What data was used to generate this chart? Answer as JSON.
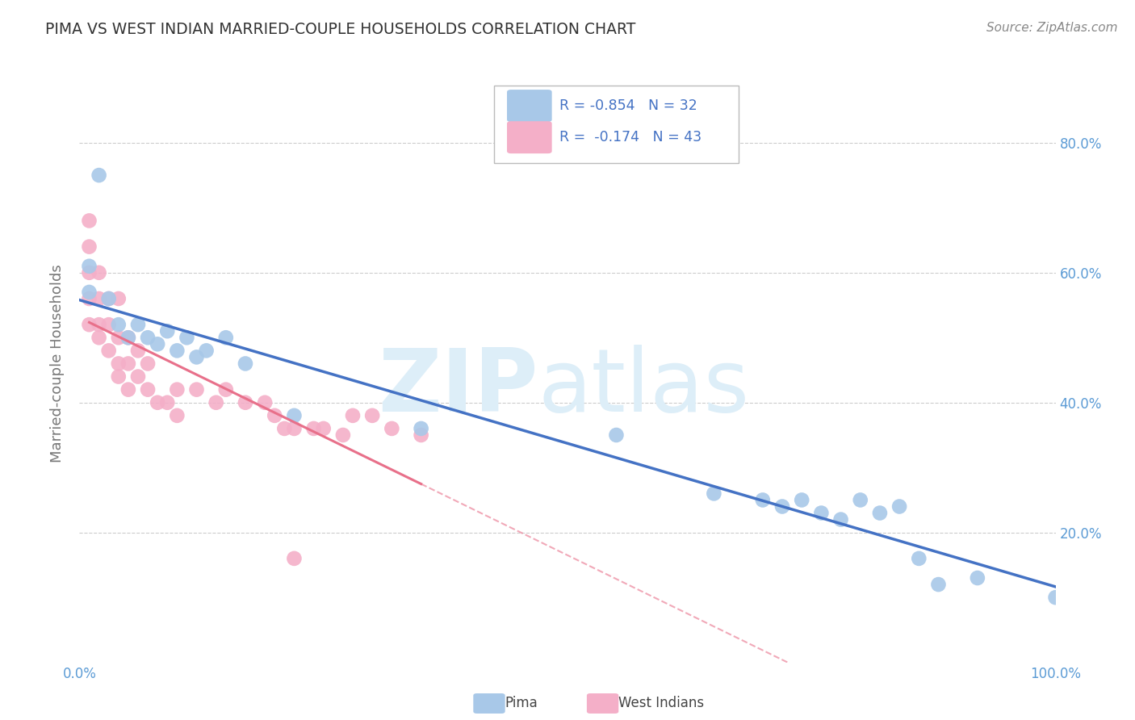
{
  "title": "PIMA VS WEST INDIAN MARRIED-COUPLE HOUSEHOLDS CORRELATION CHART",
  "source": "Source: ZipAtlas.com",
  "ylabel": "Married-couple Households",
  "ytick_labels": [
    "80.0%",
    "60.0%",
    "40.0%",
    "20.0%"
  ],
  "ytick_values": [
    0.8,
    0.6,
    0.4,
    0.2
  ],
  "legend_blue_r": "-0.854",
  "legend_blue_n": "32",
  "legend_pink_r": "-0.174",
  "legend_pink_n": "43",
  "pima_x": [
    0.01,
    0.01,
    0.02,
    0.03,
    0.04,
    0.05,
    0.06,
    0.07,
    0.08,
    0.09,
    0.1,
    0.11,
    0.12,
    0.13,
    0.15,
    0.17,
    0.22,
    0.35,
    0.55,
    0.65,
    0.7,
    0.72,
    0.74,
    0.76,
    0.78,
    0.8,
    0.82,
    0.84,
    0.86,
    0.88,
    0.92,
    1.0
  ],
  "pima_y": [
    0.61,
    0.57,
    0.75,
    0.56,
    0.52,
    0.5,
    0.52,
    0.5,
    0.49,
    0.51,
    0.48,
    0.5,
    0.47,
    0.48,
    0.5,
    0.46,
    0.38,
    0.36,
    0.35,
    0.26,
    0.25,
    0.24,
    0.25,
    0.23,
    0.22,
    0.25,
    0.23,
    0.24,
    0.16,
    0.12,
    0.13,
    0.1
  ],
  "west_indian_x": [
    0.01,
    0.01,
    0.01,
    0.01,
    0.01,
    0.02,
    0.02,
    0.02,
    0.02,
    0.03,
    0.03,
    0.03,
    0.04,
    0.04,
    0.04,
    0.04,
    0.05,
    0.05,
    0.05,
    0.06,
    0.06,
    0.07,
    0.07,
    0.08,
    0.09,
    0.1,
    0.1,
    0.12,
    0.14,
    0.15,
    0.17,
    0.19,
    0.2,
    0.21,
    0.22,
    0.24,
    0.25,
    0.27,
    0.28,
    0.3,
    0.32,
    0.35,
    0.22
  ],
  "west_indian_y": [
    0.68,
    0.64,
    0.6,
    0.56,
    0.52,
    0.6,
    0.56,
    0.52,
    0.5,
    0.56,
    0.52,
    0.48,
    0.56,
    0.5,
    0.46,
    0.44,
    0.5,
    0.46,
    0.42,
    0.48,
    0.44,
    0.46,
    0.42,
    0.4,
    0.4,
    0.42,
    0.38,
    0.42,
    0.4,
    0.42,
    0.4,
    0.4,
    0.38,
    0.36,
    0.36,
    0.36,
    0.36,
    0.35,
    0.38,
    0.38,
    0.36,
    0.35,
    0.16
  ],
  "pima_color": "#a8c8e8",
  "west_indian_color": "#f4afc8",
  "pima_line_color": "#4472c4",
  "west_indian_line_color": "#e8708a",
  "background_color": "#ffffff",
  "grid_color": "#cccccc",
  "watermark_color": "#ddeef8",
  "xlim": [
    0.0,
    1.0
  ],
  "ylim": [
    0.0,
    0.92
  ]
}
